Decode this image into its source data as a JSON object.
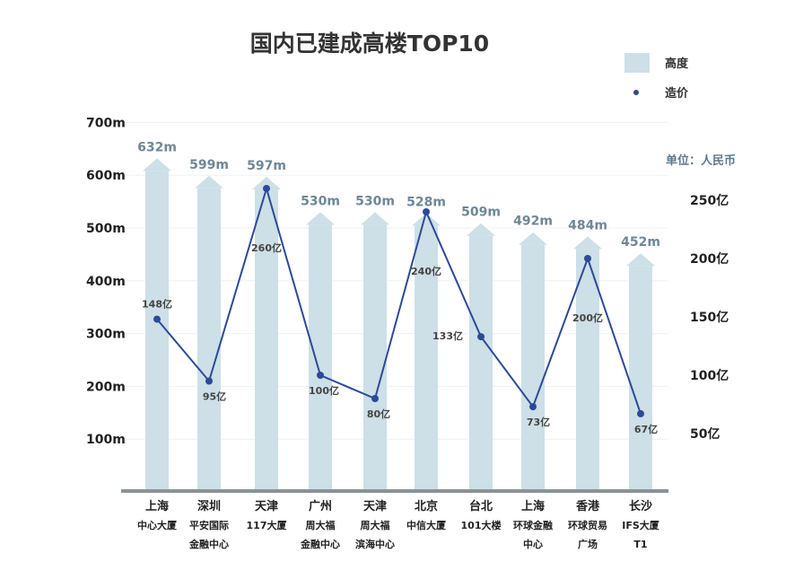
{
  "chart_data": {
    "type": "bar+line",
    "title": "国内已建成高楼TOP10",
    "unit_note": "单位：人民币",
    "legend": {
      "position": "top-right",
      "items": [
        {
          "name": "高度",
          "color": "#cddfe7"
        },
        {
          "name": "造价",
          "color": "#2b4a98"
        }
      ]
    },
    "categories": [
      [
        "上海",
        "中心大厦"
      ],
      [
        "深圳",
        "平安国际",
        "金融中心"
      ],
      [
        "天津",
        "117大厦"
      ],
      [
        "广州",
        "周大福",
        "金融中心"
      ],
      [
        "天津",
        "周大福",
        "滨海中心"
      ],
      [
        "北京",
        "中信大厦"
      ],
      [
        "台北",
        "101大楼"
      ],
      [
        "上海",
        "环球金融",
        "中心"
      ],
      [
        "香港",
        "环球贸易",
        "广场"
      ],
      [
        "长沙",
        "IFS大厦",
        "T1"
      ]
    ],
    "series": [
      {
        "name": "高度",
        "type": "bar",
        "axis": "left",
        "values": [
          632,
          599,
          597,
          530,
          530,
          528,
          509,
          492,
          484,
          452
        ],
        "labels": [
          "632m",
          "599m",
          "597m",
          "530m",
          "530m",
          "528m",
          "509m",
          "492m",
          "484m",
          "452m"
        ]
      },
      {
        "name": "造价",
        "type": "line",
        "axis": "right",
        "values": [
          148,
          95,
          260,
          100,
          80,
          240,
          133,
          73,
          200,
          67
        ],
        "labels": [
          "148亿",
          "95亿",
          "260亿",
          "100亿",
          "80亿",
          "240亿",
          "133亿",
          "73亿",
          "200亿",
          "67亿"
        ]
      }
    ],
    "left_axis": {
      "ticks": [
        100,
        200,
        300,
        400,
        500,
        600,
        700
      ],
      "tick_labels": [
        "100m",
        "200m",
        "300m",
        "400m",
        "500m",
        "600m",
        "700m"
      ],
      "range": [
        0,
        700
      ]
    },
    "right_axis": {
      "ticks": [
        50,
        100,
        150,
        200,
        250
      ],
      "tick_labels": [
        "50亿",
        "100亿",
        "150亿",
        "200亿",
        "250亿"
      ],
      "range": [
        0,
        250
      ]
    },
    "grid": true,
    "colors": {
      "bar": "#cddfe7",
      "line": "#2b4a98",
      "axis": "#8a9298"
    }
  }
}
